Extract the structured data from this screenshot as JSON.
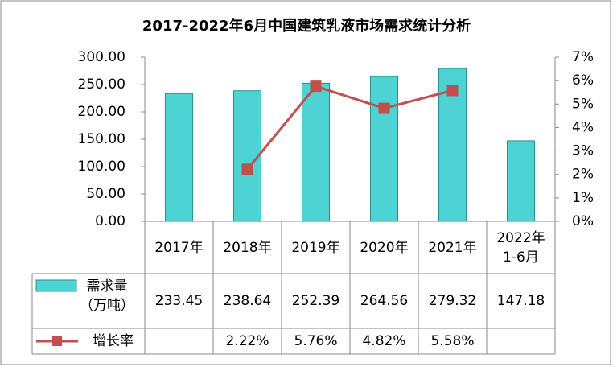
{
  "chart_data": {
    "type": "bar-line",
    "title": "2017-2022年6月中国建筑乳液市场需求统计分析",
    "categories": [
      "2017年",
      "2018年",
      "2019年",
      "2020年",
      "2021年",
      "2022年\n1-6月"
    ],
    "series": [
      {
        "name": "需求量\n（万吨）",
        "type": "bar",
        "color": "#4dd3d3",
        "values": [
          233.45,
          238.64,
          252.39,
          264.56,
          279.32,
          147.18
        ]
      },
      {
        "name": "增长率",
        "type": "line",
        "axis": "y2",
        "color": "#c0504d",
        "values": [
          null,
          2.22,
          5.76,
          4.82,
          5.58,
          null
        ],
        "value_labels": [
          null,
          "2.22%",
          "5.76%",
          "4.82%",
          "5.58%",
          null
        ]
      }
    ],
    "ylim": [
      0,
      300
    ],
    "yticks": [
      {
        "value": 0,
        "label": "0.00"
      },
      {
        "value": 50,
        "label": "50.00"
      },
      {
        "value": 100,
        "label": "100.00"
      },
      {
        "value": 150,
        "label": "150.00"
      },
      {
        "value": 200,
        "label": "200.00"
      },
      {
        "value": 250,
        "label": "250.00"
      },
      {
        "value": 300,
        "label": "300.00"
      }
    ],
    "y2lim": [
      0,
      7
    ],
    "y2ticks": [
      {
        "value": 0,
        "label": "0%"
      },
      {
        "value": 1,
        "label": "1%"
      },
      {
        "value": 2,
        "label": "2%"
      },
      {
        "value": 3,
        "label": "3%"
      },
      {
        "value": 4,
        "label": "4%"
      },
      {
        "value": 5,
        "label": "5%"
      },
      {
        "value": 6,
        "label": "6%"
      },
      {
        "value": 7,
        "label": "7%"
      }
    ]
  }
}
